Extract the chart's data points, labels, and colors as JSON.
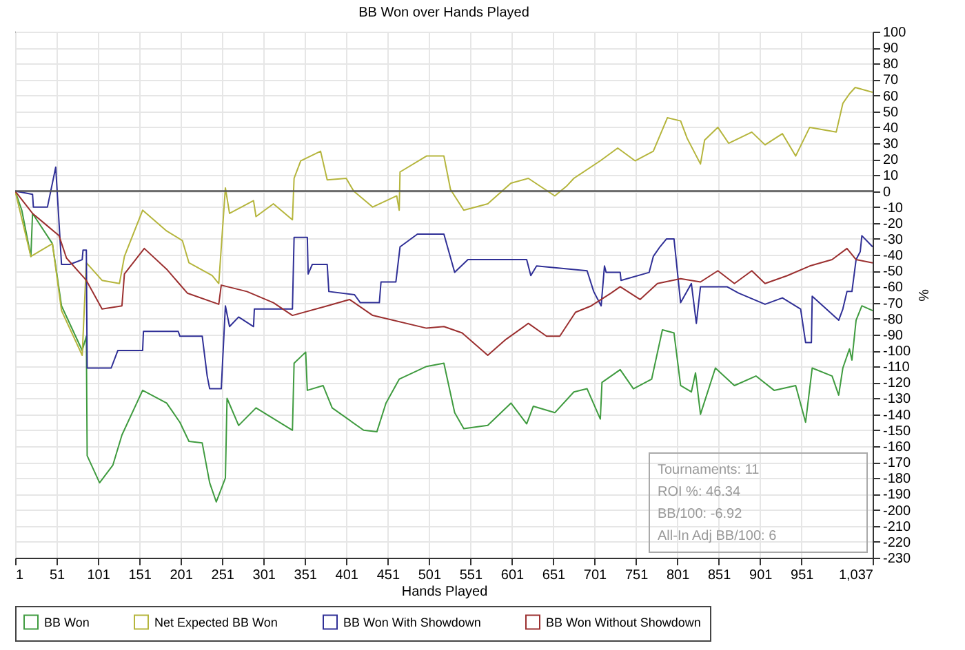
{
  "chart_data": {
    "type": "line",
    "title": "BB Won over Hands Played",
    "xlabel": "Hands Played",
    "ylabel": "%",
    "xlim": [
      1,
      1037
    ],
    "xticks": [
      1,
      51,
      101,
      151,
      201,
      251,
      301,
      351,
      401,
      451,
      501,
      551,
      601,
      651,
      701,
      751,
      801,
      851,
      901,
      951,
      {
        "value": 1037,
        "label": "1,037"
      }
    ],
    "ylim": [
      -230,
      100
    ],
    "yticks": [
      -230,
      -220,
      -210,
      -200,
      -190,
      -180,
      -170,
      -160,
      -150,
      -140,
      -130,
      -120,
      -110,
      -100,
      -90,
      -80,
      -70,
      -60,
      -50,
      -40,
      -30,
      -20,
      -10,
      0,
      10,
      20,
      30,
      40,
      50,
      60,
      70,
      80,
      90,
      100
    ],
    "grid": true,
    "legend": "bottom",
    "marker": "none",
    "line_style": "solid",
    "ref_lines": [
      {
        "axis": "y",
        "value": 0,
        "color": "#555555"
      }
    ],
    "annotations": [
      "Tournaments: 11",
      "ROI %: 46.34",
      "BB/100: -6.92",
      "All-In Adj BB/100: 6"
    ],
    "series": [
      {
        "name": "BB Won",
        "color": "#3f9b3f",
        "x": [
          1,
          9,
          20,
          22,
          46,
          57,
          82,
          87,
          88,
          103,
          119,
          130,
          155,
          184,
          200,
          211,
          227,
          236,
          244,
          255,
          257,
          271,
          292,
          336,
          338,
          352,
          354,
          373,
          384,
          422,
          438,
          449,
          465,
          498,
          519,
          532,
          543,
          572,
          600,
          619,
          627,
          653,
          676,
          692,
          708,
          710,
          732,
          748,
          770,
          783,
          797,
          805,
          818,
          823,
          829,
          847,
          870,
          896,
          918,
          944,
          956,
          964,
          988,
          996,
          1001,
          1009,
          1012,
          1017,
          1024,
          1037
        ],
        "values": [
          0,
          -12,
          -41,
          -14,
          -33,
          -72,
          -100,
          -91,
          -166,
          -183,
          -172,
          -153,
          -125,
          -133,
          -145,
          -157,
          -158,
          -183,
          -195,
          -180,
          -130,
          -147,
          -136,
          -150,
          -108,
          -101,
          -125,
          -122,
          -136,
          -150,
          -151,
          -133,
          -118,
          -110,
          -108,
          -139,
          -149,
          -147,
          -133,
          -146,
          -135,
          -139,
          -126,
          -124,
          -143,
          -120,
          -112,
          -124,
          -118,
          -87,
          -89,
          -122,
          -126,
          -114,
          -140,
          -111,
          -122,
          -116,
          -125,
          -122,
          -145,
          -111,
          -116,
          -128,
          -111,
          -99,
          -106,
          -81,
          -72,
          -75
        ]
      },
      {
        "name": "Net Expected BB Won",
        "color": "#b5b53c",
        "x": [
          1,
          20,
          46,
          57,
          82,
          87,
          106,
          127,
          133,
          155,
          184,
          203,
          211,
          239,
          247,
          255,
          260,
          289,
          292,
          313,
          336,
          338,
          346,
          370,
          378,
          401,
          410,
          433,
          462,
          465,
          466,
          498,
          519,
          527,
          543,
          572,
          600,
          621,
          653,
          667,
          676,
          708,
          729,
          750,
          772,
          789,
          805,
          813,
          829,
          834,
          850,
          863,
          891,
          907,
          928,
          944,
          961,
          993,
          1001,
          1009,
          1016,
          1037
        ],
        "values": [
          0,
          -41,
          -33,
          -75,
          -103,
          -45,
          -56,
          -58,
          -41,
          -12,
          -25,
          -31,
          -45,
          -53,
          -58,
          2,
          -14,
          -6,
          -16,
          -8,
          -18,
          8,
          19,
          25,
          7,
          8,
          0,
          -10,
          -3,
          -12,
          12,
          22,
          22,
          1,
          -12,
          -8,
          5,
          8,
          -3,
          3,
          8,
          19,
          27,
          19,
          25,
          46,
          44,
          33,
          17,
          32,
          40,
          30,
          37,
          29,
          36,
          22,
          40,
          37,
          55,
          61,
          65,
          62
        ]
      },
      {
        "name": "BB Won With Showdown",
        "color": "#2f2f96",
        "x": [
          1,
          22,
          23,
          40,
          50,
          57,
          67,
          82,
          83,
          87,
          88,
          117,
          125,
          155,
          156,
          198,
          200,
          227,
          233,
          236,
          250,
          255,
          260,
          271,
          289,
          290,
          336,
          338,
          354,
          355,
          360,
          378,
          380,
          411,
          418,
          441,
          443,
          461,
          466,
          487,
          519,
          532,
          548,
          619,
          624,
          631,
          692,
          700,
          709,
          713,
          715,
          732,
          733,
          767,
          772,
          780,
          788,
          797,
          805,
          818,
          824,
          829,
          861,
          875,
          907,
          928,
          950,
          956,
          963,
          964,
          996,
          1001,
          1006,
          1012,
          1017,
          1022,
          1024,
          1037
        ],
        "values": [
          0,
          -2,
          -10,
          -10,
          15,
          -46,
          -46,
          -43,
          -37,
          -37,
          -111,
          -111,
          -100,
          -100,
          -88,
          -88,
          -91,
          -91,
          -116,
          -124,
          -124,
          -72,
          -85,
          -79,
          -85,
          -74,
          -74,
          -29,
          -29,
          -52,
          -46,
          -46,
          -63,
          -65,
          -70,
          -70,
          -57,
          -57,
          -35,
          -27,
          -27,
          -51,
          -43,
          -43,
          -53,
          -47,
          -50,
          -63,
          -72,
          -47,
          -51,
          -51,
          -56,
          -51,
          -41,
          -35,
          -30,
          -30,
          -70,
          -58,
          -83,
          -60,
          -60,
          -64,
          -71,
          -67,
          -74,
          -95,
          -95,
          -66,
          -81,
          -74,
          -63,
          -63,
          -43,
          -38,
          -28,
          -35
        ]
      },
      {
        "name": "BB Won Without Showdown",
        "color": "#9b2f2f",
        "x": [
          1,
          22,
          38,
          54,
          63,
          87,
          106,
          130,
          133,
          157,
          184,
          209,
          247,
          250,
          281,
          313,
          336,
          378,
          405,
          433,
          498,
          519,
          541,
          572,
          594,
          621,
          643,
          659,
          678,
          697,
          721,
          732,
          756,
          777,
          805,
          829,
          850,
          870,
          891,
          907,
          934,
          961,
          988,
          1006,
          1017,
          1037
        ],
        "values": [
          0,
          -14,
          -21,
          -28,
          -42,
          -56,
          -74,
          -72,
          -52,
          -36,
          -49,
          -64,
          -71,
          -59,
          -63,
          -70,
          -78,
          -72,
          -68,
          -78,
          -86,
          -85,
          -89,
          -103,
          -93,
          -83,
          -91,
          -91,
          -76,
          -72,
          -64,
          -60,
          -68,
          -58,
          -55,
          -57,
          -50,
          -58,
          -50,
          -58,
          -53,
          -47,
          -43,
          -36,
          -43,
          -45
        ]
      }
    ]
  }
}
